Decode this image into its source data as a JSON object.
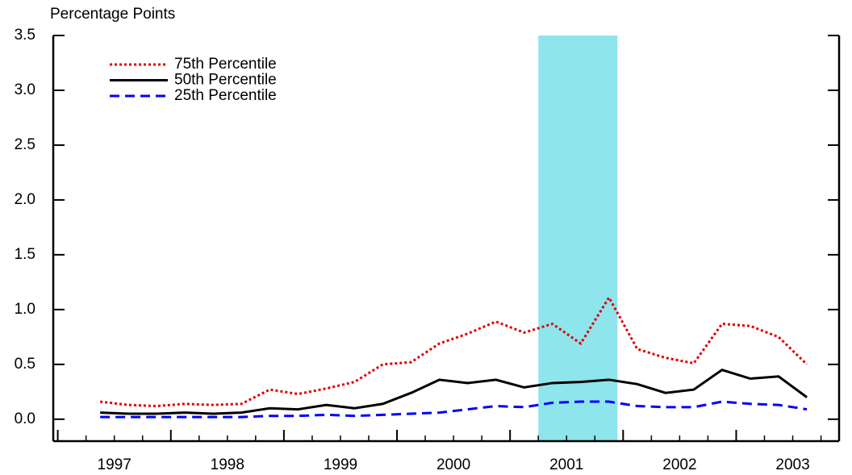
{
  "chart_data": {
    "type": "line",
    "y_label": "Percentage Points",
    "x": [
      1997.375,
      1997.625,
      1997.875,
      1998.125,
      1998.375,
      1998.625,
      1998.875,
      1999.125,
      1999.375,
      1999.625,
      1999.875,
      2000.125,
      2000.375,
      2000.625,
      2000.875,
      2001.125,
      2001.375,
      2001.625,
      2001.875,
      2002.125,
      2002.375,
      2002.625,
      2002.875,
      2003.125,
      2003.375,
      2003.625
    ],
    "series": [
      {
        "name": "75th Percentile",
        "color": "#e00000",
        "dash": "dotted",
        "values": [
          0.16,
          0.13,
          0.12,
          0.14,
          0.13,
          0.14,
          0.27,
          0.23,
          0.28,
          0.34,
          0.5,
          0.52,
          0.69,
          0.78,
          0.89,
          0.79,
          0.87,
          0.69,
          1.11,
          0.64,
          0.56,
          0.51,
          0.87,
          0.85,
          0.75,
          0.5
        ]
      },
      {
        "name": "50th Percentile",
        "color": "#000000",
        "dash": "solid",
        "values": [
          0.06,
          0.05,
          0.05,
          0.06,
          0.05,
          0.06,
          0.1,
          0.09,
          0.13,
          0.1,
          0.14,
          0.24,
          0.36,
          0.33,
          0.36,
          0.29,
          0.33,
          0.34,
          0.36,
          0.32,
          0.24,
          0.27,
          0.45,
          0.37,
          0.39,
          0.2
        ]
      },
      {
        "name": "25th Percentile",
        "color": "#0000ff",
        "dash": "dashed",
        "values": [
          0.02,
          0.02,
          0.02,
          0.02,
          0.02,
          0.02,
          0.03,
          0.03,
          0.04,
          0.03,
          0.04,
          0.05,
          0.06,
          0.09,
          0.12,
          0.11,
          0.15,
          0.16,
          0.16,
          0.12,
          0.11,
          0.11,
          0.16,
          0.14,
          0.13,
          0.09
        ]
      }
    ],
    "shade": [
      2001.25,
      2001.95
    ],
    "shade_color": "#8ee5ec",
    "xlim": [
      1996.96,
      2003.91
    ],
    "xticks": [
      1997,
      1998,
      1999,
      2000,
      2001,
      2002,
      2003
    ],
    "ylim": [
      -0.2,
      3.5
    ],
    "yticks": [
      {
        "value": 0,
        "label": "0.0"
      },
      0.5,
      {
        "value": 1,
        "label": "1.0"
      },
      1.5,
      {
        "value": 2,
        "label": "2.0"
      },
      2.5,
      {
        "value": 3,
        "label": "3.0"
      },
      3.5
    ],
    "legend": "top-left"
  }
}
